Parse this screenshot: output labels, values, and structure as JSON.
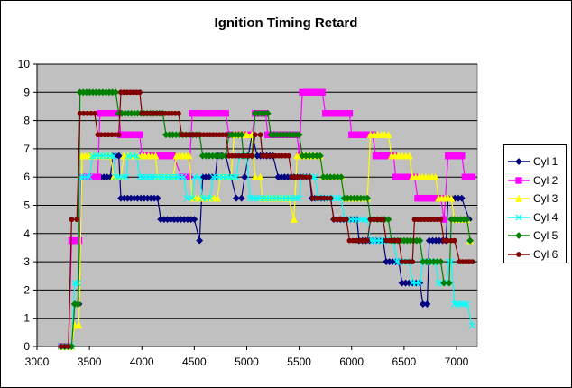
{
  "chart_data": {
    "type": "line",
    "title": "Ignition Timing Retard",
    "xlabel": "",
    "ylabel": "",
    "xlim": [
      3000,
      7000
    ],
    "ylim": [
      0,
      10
    ],
    "x_ticks": [
      3000,
      3500,
      4000,
      4500,
      5000,
      5500,
      6000,
      6500,
      7000
    ],
    "y_ticks": [
      0,
      1,
      2,
      3,
      4,
      5,
      6,
      7,
      8,
      9,
      10
    ],
    "grid": "horizontal",
    "plot_background": "#c0c0c0",
    "legend_position": "right",
    "series": [
      {
        "name": "Cyl 1",
        "color": "#000080",
        "marker": "diamond",
        "points": [
          [
            3230,
            0
          ],
          [
            3330,
            0
          ],
          [
            3360,
            1.5
          ],
          [
            3400,
            1.5
          ],
          [
            3420,
            6
          ],
          [
            3700,
            6
          ],
          [
            3720,
            6.75
          ],
          [
            3780,
            6.75
          ],
          [
            3800,
            5.25
          ],
          [
            4150,
            5.25
          ],
          [
            4180,
            4.5
          ],
          [
            4500,
            4.5
          ],
          [
            4550,
            3.75
          ],
          [
            4580,
            6
          ],
          [
            4700,
            6
          ],
          [
            4720,
            6.75
          ],
          [
            4800,
            6.75
          ],
          [
            4850,
            6
          ],
          [
            4900,
            5.25
          ],
          [
            4950,
            5.25
          ],
          [
            4980,
            6
          ],
          [
            5050,
            7.5
          ],
          [
            5100,
            6.75
          ],
          [
            5250,
            6.75
          ],
          [
            5300,
            6
          ],
          [
            5600,
            6
          ],
          [
            5620,
            5.25
          ],
          [
            5800,
            5.25
          ],
          [
            5830,
            4.5
          ],
          [
            6050,
            4.5
          ],
          [
            6070,
            3.75
          ],
          [
            6300,
            3.75
          ],
          [
            6330,
            3
          ],
          [
            6450,
            3
          ],
          [
            6480,
            2.25
          ],
          [
            6650,
            2.25
          ],
          [
            6680,
            1.5
          ],
          [
            6720,
            1.5
          ],
          [
            6740,
            3.75
          ],
          [
            6900,
            3.75
          ],
          [
            6920,
            5.25
          ],
          [
            7050,
            5.25
          ],
          [
            7120,
            4.5
          ]
        ]
      },
      {
        "name": "Cyl 2",
        "color": "#ff00ff",
        "marker": "square",
        "points": [
          [
            3230,
            0
          ],
          [
            3300,
            0
          ],
          [
            3330,
            3.75
          ],
          [
            3400,
            3.75
          ],
          [
            3420,
            6
          ],
          [
            3580,
            6
          ],
          [
            3600,
            8.25
          ],
          [
            3780,
            8.25
          ],
          [
            3800,
            7.5
          ],
          [
            3980,
            7.5
          ],
          [
            4000,
            6.75
          ],
          [
            4250,
            6.75
          ],
          [
            4300,
            6.75
          ],
          [
            4380,
            6
          ],
          [
            4450,
            6
          ],
          [
            4480,
            8.25
          ],
          [
            4800,
            8.25
          ],
          [
            4830,
            7.5
          ],
          [
            5050,
            7.5
          ],
          [
            5080,
            8.25
          ],
          [
            5180,
            8.25
          ],
          [
            5200,
            7.5
          ],
          [
            5480,
            7.5
          ],
          [
            5500,
            6.75
          ],
          [
            5530,
            9
          ],
          [
            5720,
            9
          ],
          [
            5750,
            8.25
          ],
          [
            5980,
            8.25
          ],
          [
            6000,
            7.5
          ],
          [
            6200,
            7.5
          ],
          [
            6230,
            6.75
          ],
          [
            6400,
            6.75
          ],
          [
            6420,
            6
          ],
          [
            6600,
            6
          ],
          [
            6630,
            5.25
          ],
          [
            6850,
            5.25
          ],
          [
            6880,
            4.5
          ],
          [
            6920,
            6.75
          ],
          [
            7050,
            6.75
          ],
          [
            7080,
            6
          ],
          [
            7150,
            6
          ]
        ]
      },
      {
        "name": "Cyl 3",
        "color": "#ffff00",
        "marker": "triangle",
        "points": [
          [
            3230,
            0
          ],
          [
            3330,
            0
          ],
          [
            3360,
            0.75
          ],
          [
            3400,
            0.75
          ],
          [
            3430,
            6.75
          ],
          [
            3700,
            6.75
          ],
          [
            3730,
            6
          ],
          [
            3800,
            6
          ],
          [
            3830,
            6.75
          ],
          [
            4000,
            6.75
          ],
          [
            4030,
            6.75
          ],
          [
            4130,
            6.75
          ],
          [
            4150,
            6
          ],
          [
            4300,
            6
          ],
          [
            4330,
            6.75
          ],
          [
            4450,
            6.75
          ],
          [
            4480,
            5.25
          ],
          [
            4720,
            5.25
          ],
          [
            4750,
            6
          ],
          [
            4850,
            6
          ],
          [
            4880,
            7.5
          ],
          [
            5000,
            7.5
          ],
          [
            5050,
            7.5
          ],
          [
            5080,
            6
          ],
          [
            5130,
            6
          ],
          [
            5150,
            5.25
          ],
          [
            5400,
            5.25
          ],
          [
            5450,
            4.5
          ],
          [
            5480,
            6.75
          ],
          [
            5700,
            6.75
          ],
          [
            5730,
            6
          ],
          [
            5900,
            6
          ],
          [
            5930,
            5.25
          ],
          [
            6150,
            5.25
          ],
          [
            6180,
            7.5
          ],
          [
            6350,
            7.5
          ],
          [
            6380,
            6.75
          ],
          [
            6550,
            6.75
          ],
          [
            6580,
            6
          ],
          [
            6800,
            6
          ],
          [
            6830,
            5.25
          ],
          [
            6950,
            5.25
          ],
          [
            6980,
            4.5
          ],
          [
            7100,
            4.5
          ],
          [
            7130,
            3.75
          ]
        ]
      },
      {
        "name": "Cyl 4",
        "color": "#00ffff",
        "marker": "x",
        "points": [
          [
            3230,
            0
          ],
          [
            3330,
            0
          ],
          [
            3360,
            2.25
          ],
          [
            3390,
            2.25
          ],
          [
            3410,
            6
          ],
          [
            3500,
            6
          ],
          [
            3530,
            6.75
          ],
          [
            3730,
            6.75
          ],
          [
            3750,
            6
          ],
          [
            3850,
            6
          ],
          [
            3870,
            6.75
          ],
          [
            3950,
            6.75
          ],
          [
            3980,
            6
          ],
          [
            4400,
            6
          ],
          [
            4430,
            5.25
          ],
          [
            4480,
            5.25
          ],
          [
            4500,
            6
          ],
          [
            4550,
            6
          ],
          [
            4580,
            5.25
          ],
          [
            4650,
            5.25
          ],
          [
            4680,
            6
          ],
          [
            4900,
            6
          ],
          [
            4930,
            6.75
          ],
          [
            5000,
            6.75
          ],
          [
            5030,
            5.25
          ],
          [
            5500,
            5.25
          ],
          [
            5520,
            6
          ],
          [
            5650,
            6
          ],
          [
            5680,
            5.25
          ],
          [
            5900,
            5.25
          ],
          [
            5930,
            4.5
          ],
          [
            6150,
            4.5
          ],
          [
            6180,
            3.75
          ],
          [
            6400,
            3.75
          ],
          [
            6430,
            3
          ],
          [
            6550,
            3
          ],
          [
            6580,
            2.25
          ],
          [
            6650,
            2.25
          ],
          [
            6680,
            3
          ],
          [
            6800,
            3
          ],
          [
            6830,
            2.25
          ],
          [
            6900,
            2.25
          ],
          [
            6930,
            3
          ],
          [
            6950,
            3
          ],
          [
            6980,
            1.5
          ],
          [
            7100,
            1.5
          ],
          [
            7150,
            0.75
          ]
        ]
      },
      {
        "name": "Cyl 5",
        "color": "#008000",
        "marker": "diamond",
        "points": [
          [
            3230,
            0
          ],
          [
            3330,
            0
          ],
          [
            3360,
            1.5
          ],
          [
            3390,
            1.5
          ],
          [
            3410,
            9
          ],
          [
            3750,
            9
          ],
          [
            3780,
            8.25
          ],
          [
            4200,
            8.25
          ],
          [
            4230,
            7.5
          ],
          [
            4550,
            7.5
          ],
          [
            4580,
            6.75
          ],
          [
            4800,
            6.75
          ],
          [
            4830,
            7.5
          ],
          [
            4950,
            7.5
          ],
          [
            4970,
            6.75
          ],
          [
            5050,
            6.75
          ],
          [
            5080,
            8.25
          ],
          [
            5200,
            8.25
          ],
          [
            5230,
            7.5
          ],
          [
            5500,
            7.5
          ],
          [
            5530,
            6.75
          ],
          [
            5700,
            6.75
          ],
          [
            5730,
            6
          ],
          [
            5900,
            6
          ],
          [
            5930,
            5.25
          ],
          [
            6150,
            5.25
          ],
          [
            6180,
            4.5
          ],
          [
            6350,
            4.5
          ],
          [
            6380,
            3.75
          ],
          [
            6650,
            3.75
          ],
          [
            6680,
            3
          ],
          [
            6850,
            3
          ],
          [
            6880,
            2.25
          ],
          [
            6930,
            2.25
          ],
          [
            6950,
            4.5
          ],
          [
            7100,
            4.5
          ],
          [
            7130,
            3.75
          ]
        ]
      },
      {
        "name": "Cyl 6",
        "color": "#800000",
        "marker": "circle",
        "points": [
          [
            3230,
            0
          ],
          [
            3300,
            0
          ],
          [
            3330,
            4.5
          ],
          [
            3380,
            4.5
          ],
          [
            3410,
            8.25
          ],
          [
            3550,
            8.25
          ],
          [
            3580,
            7.5
          ],
          [
            3780,
            7.5
          ],
          [
            3800,
            9
          ],
          [
            3980,
            9
          ],
          [
            4000,
            8.25
          ],
          [
            4350,
            8.25
          ],
          [
            4380,
            7.5
          ],
          [
            4800,
            7.5
          ],
          [
            4830,
            6.75
          ],
          [
            5050,
            6.75
          ],
          [
            5080,
            7.5
          ],
          [
            5130,
            7.5
          ],
          [
            5150,
            6.75
          ],
          [
            5400,
            6.75
          ],
          [
            5430,
            6
          ],
          [
            5600,
            6
          ],
          [
            5630,
            5.25
          ],
          [
            5700,
            5.25
          ],
          [
            5730,
            5.25
          ],
          [
            5800,
            5.25
          ],
          [
            5830,
            4.5
          ],
          [
            5950,
            4.5
          ],
          [
            5980,
            3.75
          ],
          [
            6150,
            3.75
          ],
          [
            6180,
            4.5
          ],
          [
            6300,
            4.5
          ],
          [
            6330,
            3.75
          ],
          [
            6450,
            3.75
          ],
          [
            6480,
            3
          ],
          [
            6580,
            3
          ],
          [
            6600,
            4.5
          ],
          [
            6850,
            4.5
          ],
          [
            6880,
            3.75
          ],
          [
            6950,
            3.75
          ],
          [
            6980,
            3.75
          ],
          [
            7030,
            3
          ],
          [
            7150,
            3
          ]
        ]
      }
    ]
  }
}
